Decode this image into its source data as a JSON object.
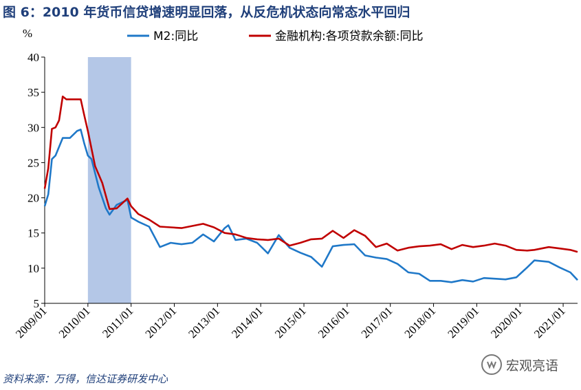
{
  "title": "图 6：2010 年货币信贷增速明显回落，从反危机状态向常态水平回归",
  "source": "资料来源：万得，信达证券研发中心",
  "watermark": {
    "text": "宏观亮语",
    "icon": "wechat-channel-icon"
  },
  "colors": {
    "m2": "#1f78c8",
    "loans": "#c00000",
    "shade": "#b4c7e7",
    "axis": "#000000"
  },
  "chart_data": {
    "type": "line",
    "ylabel": "%",
    "ylim": [
      5,
      40
    ],
    "yticks": [
      5,
      10,
      15,
      20,
      25,
      30,
      35,
      40
    ],
    "xlim": [
      "2009-01",
      "2021-05"
    ],
    "xticks": [
      "2009/01",
      "2010/01",
      "2011/01",
      "2012/01",
      "2013/01",
      "2014/01",
      "2015/01",
      "2016/01",
      "2017/01",
      "2018/01",
      "2019/01",
      "2020/01",
      "2021/01"
    ],
    "shaded_period": [
      "2010-01",
      "2011-01"
    ],
    "grid": false,
    "legend_position": "top",
    "series": [
      {
        "name": "M2:同比",
        "x": [
          "2009-01",
          "2009-02",
          "2009-03",
          "2009-04",
          "2009-06",
          "2009-08",
          "2009-10",
          "2009-11",
          "2009-12",
          "2010-01",
          "2010-02",
          "2010-04",
          "2010-06",
          "2010-07",
          "2010-09",
          "2010-12",
          "2011-01",
          "2011-03",
          "2011-06",
          "2011-09",
          "2011-12",
          "2012-03",
          "2012-06",
          "2012-09",
          "2012-12",
          "2013-03",
          "2013-04",
          "2013-06",
          "2013-09",
          "2013-12",
          "2014-03",
          "2014-06",
          "2014-09",
          "2014-12",
          "2015-03",
          "2015-06",
          "2015-09",
          "2015-12",
          "2016-03",
          "2016-06",
          "2016-09",
          "2016-12",
          "2017-03",
          "2017-06",
          "2017-09",
          "2017-12",
          "2018-03",
          "2018-06",
          "2018-09",
          "2018-12",
          "2019-03",
          "2019-06",
          "2019-09",
          "2019-12",
          "2020-03",
          "2020-05",
          "2020-09",
          "2020-12",
          "2021-03",
          "2021-05"
        ],
        "values": [
          18.8,
          20.5,
          25.5,
          26.0,
          28.5,
          28.5,
          29.5,
          29.7,
          27.7,
          26.0,
          25.5,
          21.5,
          18.5,
          17.6,
          19.0,
          19.7,
          17.2,
          16.6,
          15.9,
          13.0,
          13.6,
          13.4,
          13.6,
          14.8,
          13.8,
          15.7,
          16.1,
          14.0,
          14.2,
          13.6,
          12.1,
          14.7,
          12.9,
          12.2,
          11.6,
          10.2,
          13.1,
          13.3,
          13.4,
          11.8,
          11.5,
          11.3,
          10.6,
          9.4,
          9.2,
          8.2,
          8.2,
          8.0,
          8.3,
          8.1,
          8.6,
          8.5,
          8.4,
          8.7,
          10.1,
          11.1,
          10.9,
          10.1,
          9.4,
          8.3
        ]
      },
      {
        "name": "金融机构:各项贷款余额:同比",
        "x": [
          "2009-01",
          "2009-02",
          "2009-03",
          "2009-04",
          "2009-05",
          "2009-06",
          "2009-07",
          "2009-09",
          "2009-11",
          "2009-12",
          "2010-01",
          "2010-03",
          "2010-05",
          "2010-07",
          "2010-09",
          "2010-12",
          "2011-01",
          "2011-03",
          "2011-06",
          "2011-09",
          "2011-12",
          "2012-03",
          "2012-06",
          "2012-09",
          "2012-12",
          "2013-03",
          "2013-06",
          "2013-09",
          "2013-12",
          "2014-03",
          "2014-06",
          "2014-09",
          "2014-12",
          "2015-03",
          "2015-06",
          "2015-09",
          "2015-12",
          "2016-03",
          "2016-06",
          "2016-09",
          "2016-12",
          "2017-03",
          "2017-06",
          "2017-09",
          "2017-12",
          "2018-03",
          "2018-06",
          "2018-09",
          "2018-12",
          "2019-03",
          "2019-06",
          "2019-09",
          "2019-12",
          "2020-03",
          "2020-05",
          "2020-09",
          "2020-12",
          "2021-03",
          "2021-05"
        ],
        "values": [
          21.3,
          24.2,
          29.8,
          30.0,
          31.0,
          34.4,
          34.0,
          34.0,
          34.0,
          31.7,
          29.5,
          24.5,
          22.1,
          18.4,
          18.5,
          19.9,
          18.8,
          17.7,
          16.9,
          15.9,
          15.8,
          15.7,
          16.0,
          16.3,
          15.8,
          15.0,
          14.8,
          14.3,
          14.1,
          14.0,
          14.2,
          13.2,
          13.6,
          14.1,
          14.2,
          15.3,
          14.3,
          15.4,
          14.6,
          13.0,
          13.5,
          12.5,
          12.9,
          13.1,
          13.2,
          13.4,
          12.7,
          13.3,
          13.0,
          13.2,
          13.5,
          13.2,
          12.6,
          12.5,
          12.6,
          13.0,
          12.8,
          12.6,
          12.3
        ]
      }
    ]
  }
}
